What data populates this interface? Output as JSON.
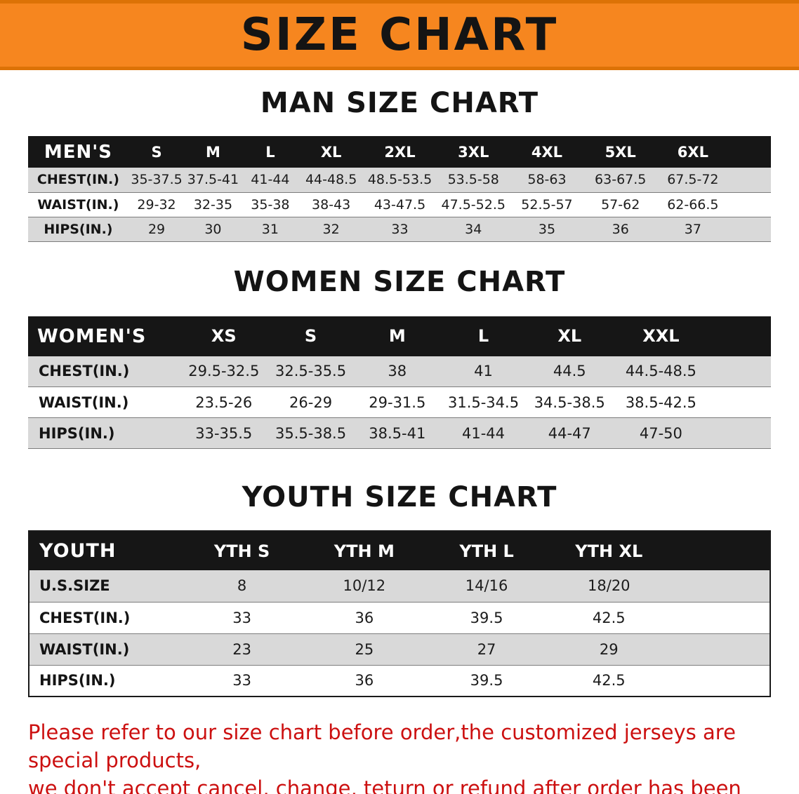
{
  "banner": {
    "title": "SIZE CHART"
  },
  "colors": {
    "banner_bg": "#F6861F",
    "banner_edge": "#DC7206",
    "header_bg": "#161616",
    "header_text": "#FFFFFF",
    "row_alt_bg": "#D9D9D9",
    "row_bg": "#FFFFFF",
    "note_text": "#CC1010",
    "ink": "#141414"
  },
  "sections": {
    "men": {
      "title": "MAN SIZE CHART",
      "header": [
        "MEN'S",
        "S",
        "M",
        "L",
        "XL",
        "2XL",
        "3XL",
        "4XL",
        "5XL",
        "6XL"
      ],
      "rows": [
        [
          "CHEST(IN.)",
          "35-37.5",
          "37.5-41",
          "41-44",
          "44-48.5",
          "48.5-53.5",
          "53.5-58",
          "58-63",
          "63-67.5",
          "67.5-72"
        ],
        [
          "WAIST(IN.)",
          "29-32",
          "32-35",
          "35-38",
          "38-43",
          "43-47.5",
          "47.5-52.5",
          "52.5-57",
          "57-62",
          "62-66.5"
        ],
        [
          "HIPS(IN.)",
          "29",
          "30",
          "31",
          "32",
          "33",
          "34",
          "35",
          "36",
          "37"
        ]
      ]
    },
    "women": {
      "title": "WOMEN SIZE CHART",
      "header": [
        "WOMEN'S",
        "XS",
        "S",
        "M",
        "L",
        "XL",
        "XXL"
      ],
      "rows": [
        [
          "CHEST(IN.)",
          "29.5-32.5",
          "32.5-35.5",
          "38",
          "41",
          "44.5",
          "44.5-48.5"
        ],
        [
          "WAIST(IN.)",
          "23.5-26",
          "26-29",
          "29-31.5",
          "31.5-34.5",
          "34.5-38.5",
          "38.5-42.5"
        ],
        [
          "HIPS(IN.)",
          "33-35.5",
          "35.5-38.5",
          "38.5-41",
          "41-44",
          "44-47",
          "47-50"
        ]
      ]
    },
    "youth": {
      "title": "YOUTH SIZE CHART",
      "header": [
        "YOUTH",
        "YTH S",
        "YTH M",
        "YTH L",
        "YTH XL"
      ],
      "rows": [
        [
          "U.S.SIZE",
          "8",
          "10/12",
          "14/16",
          "18/20"
        ],
        [
          "CHEST(IN.)",
          "33",
          "36",
          "39.5",
          "42.5"
        ],
        [
          "WAIST(IN.)",
          "23",
          "25",
          "27",
          "29"
        ],
        [
          "HIPS(IN.)",
          "33",
          "36",
          "39.5",
          "42.5"
        ]
      ]
    }
  },
  "note": {
    "line1": "Please refer to our size chart before order,the customized jerseys are special products,",
    "line2": "we don't accept cancel, change, teturn or refund after order has been placed!"
  }
}
